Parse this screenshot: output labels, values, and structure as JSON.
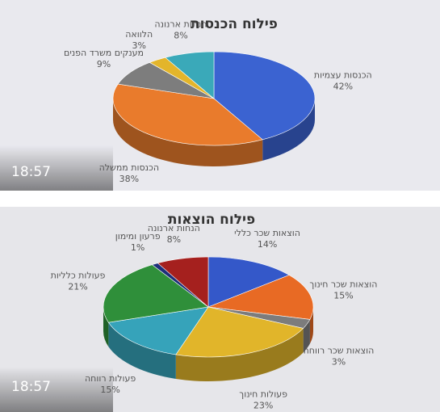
{
  "chart_data": [
    {
      "type": "pie",
      "title": "פילוח הכנסות",
      "categories": [
        "הכנסות עצמיות",
        "הכנסות ממשלה",
        "מענקים משרד הפנים",
        "הלוואה",
        "הנחות ארנונה"
      ],
      "values": [
        42,
        38,
        9,
        3,
        8
      ],
      "value_labels": [
        "42%",
        "38%",
        "9%",
        "3%",
        "8%"
      ],
      "colors": [
        "#3b63d1",
        "#e97b2c",
        "#7d7d7d",
        "#e3b52b",
        "#3aa9b9"
      ]
    },
    {
      "type": "pie",
      "title": "פילוח הוצאות",
      "categories": [
        "הוצאות שכר כללי",
        "הוצאות שכר חינוך",
        "הוצאות שכר רווחה",
        "פעולות חינוך",
        "פעולות רווחה",
        "פעולות כלליות",
        "פרעון ומימון",
        "הנחות ארנונה"
      ],
      "values": [
        14,
        15,
        3,
        23,
        15,
        21,
        1,
        8
      ],
      "value_labels": [
        "14%",
        "15%",
        "3%",
        "23%",
        "15%",
        "21%",
        "1%",
        "8%"
      ],
      "colors": [
        "#3458c9",
        "#e86a24",
        "#7c7c7c",
        "#e1b52a",
        "#36a3ba",
        "#2f8f3a",
        "#1d2f7a",
        "#a5201e"
      ]
    }
  ],
  "timestamps": [
    "18:57",
    "18:57"
  ]
}
